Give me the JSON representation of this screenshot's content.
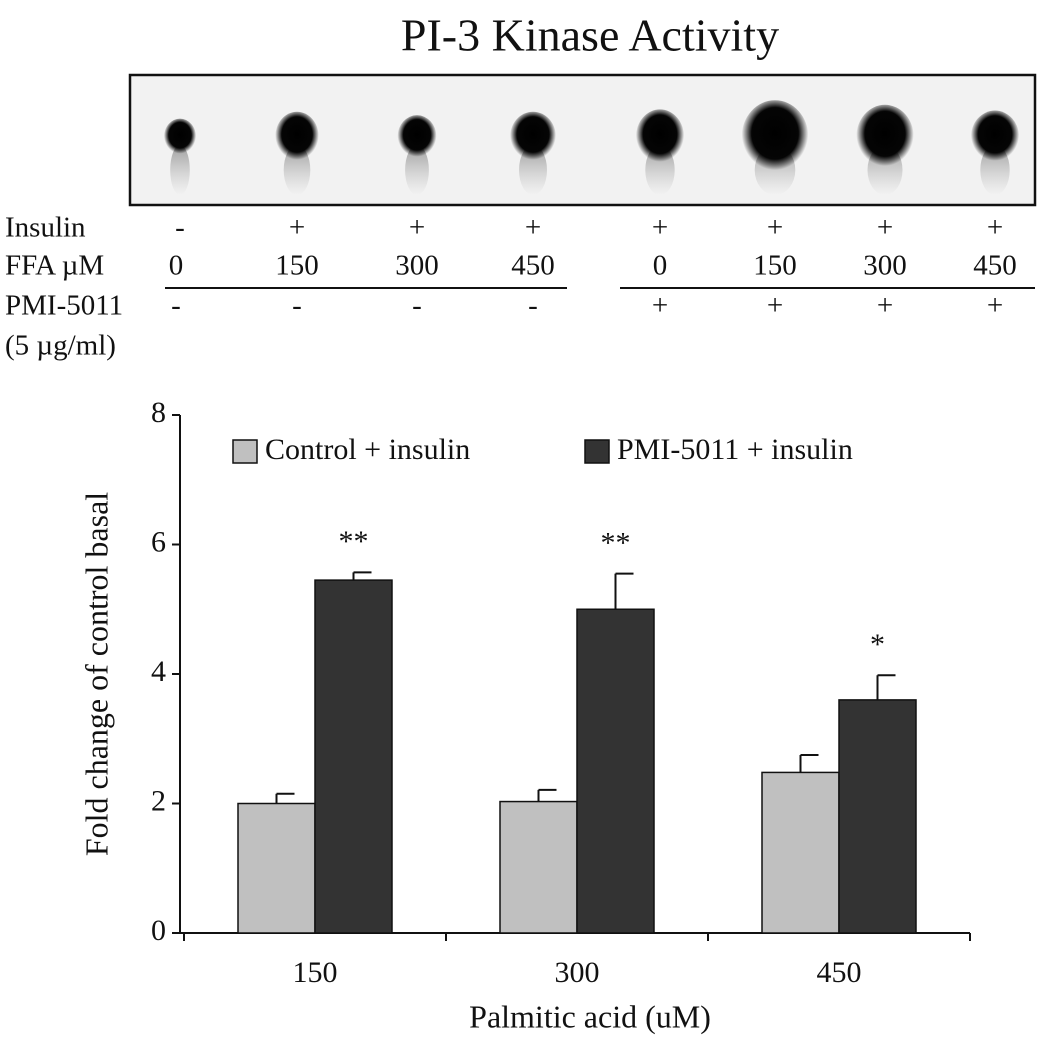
{
  "blot": {
    "title": "PI-3 Kinase Activity",
    "rows": [
      {
        "label": "Insulin",
        "lanes": [
          "-",
          "+",
          "+",
          "+",
          "+",
          "+",
          "+",
          "+"
        ]
      },
      {
        "label": "FFA µM",
        "lanes": [
          "0",
          "150",
          "300",
          "450",
          "0",
          "150",
          "300",
          "450"
        ]
      },
      {
        "label": "PMI-5011",
        "sublabel": "(5 µg/ml)",
        "lanes": [
          "-",
          "-",
          "-",
          "-",
          "+",
          "+",
          "+",
          "+"
        ]
      }
    ]
  },
  "chart_data": {
    "type": "bar",
    "categories": [
      "150",
      "300",
      "450"
    ],
    "series": [
      {
        "name": "Control + insulin",
        "color": "#c0c0c0",
        "values": [
          2.0,
          2.03,
          2.48
        ],
        "errors": [
          0.15,
          0.18,
          0.27
        ]
      },
      {
        "name": "PMI-5011 + insulin",
        "color": "#333333",
        "values": [
          5.45,
          5.0,
          3.6
        ],
        "errors": [
          0.12,
          0.55,
          0.38
        ],
        "annotations": [
          "**",
          "**",
          "*"
        ]
      }
    ],
    "ylim": [
      0,
      8
    ],
    "yticks": [
      0,
      2,
      4,
      6,
      8
    ],
    "y_label": "Fold change of control basal",
    "x_label": "Palmitic acid (uM)"
  }
}
